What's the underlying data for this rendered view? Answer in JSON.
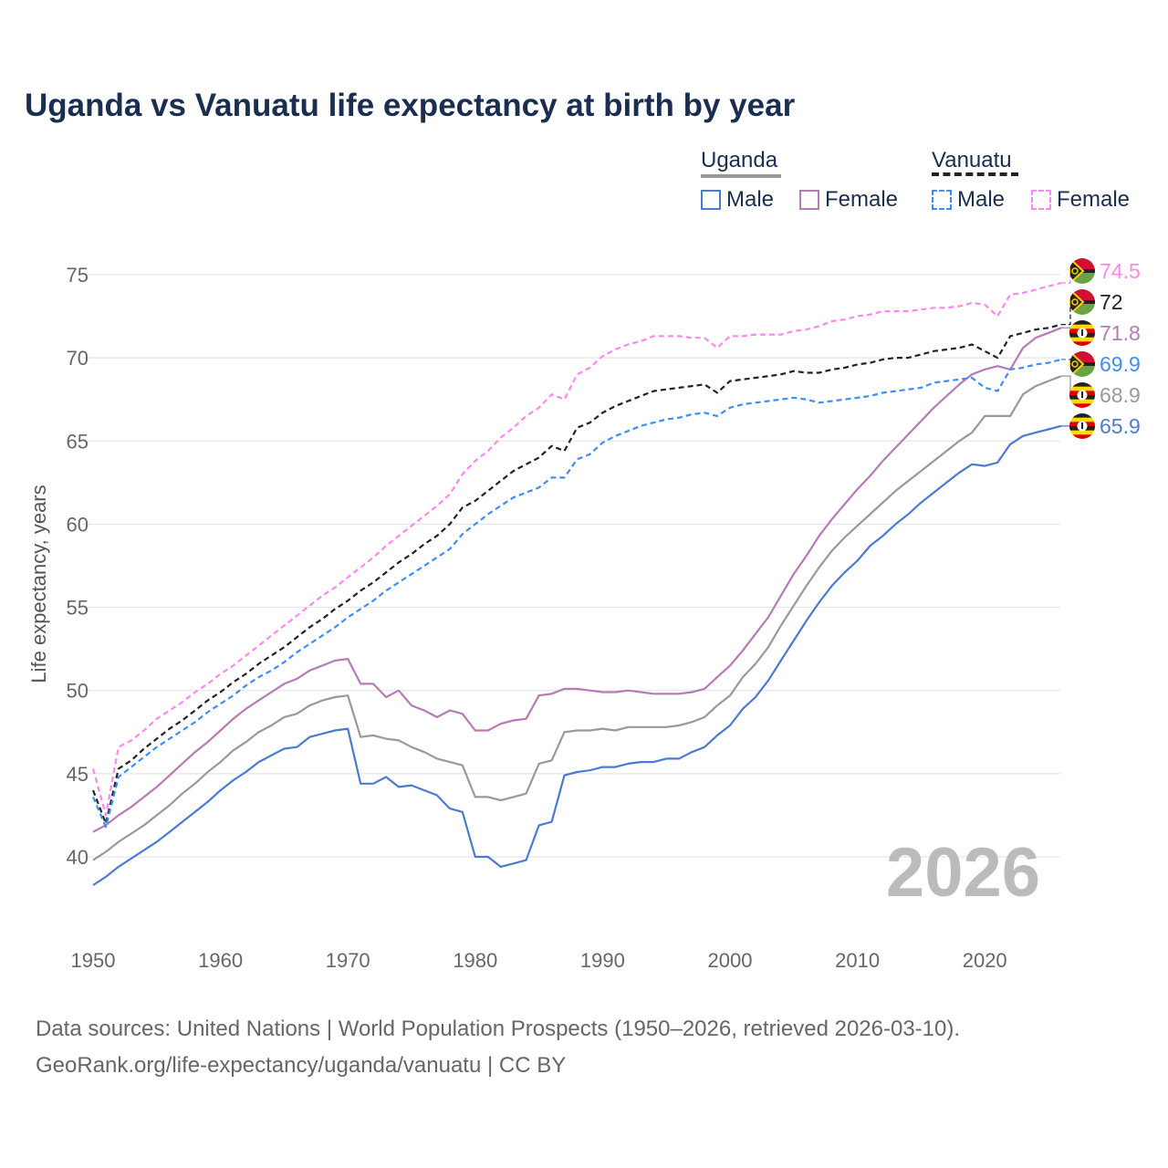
{
  "title": "Uganda vs Vanuatu life expectancy at birth by year",
  "legend": {
    "groups": [
      {
        "label": "Uganda"
      },
      {
        "label": "Vanuatu"
      }
    ],
    "items": [
      {
        "label": "Male"
      },
      {
        "label": "Female"
      },
      {
        "label": "Male"
      },
      {
        "label": "Female"
      }
    ]
  },
  "year_watermark": "2026",
  "source_line1": "Data sources: United Nations | World Population Prospects (1950–2026, retrieved 2026-03-10).",
  "source_line2": "GeoRank.org/life-expectancy/uganda/vanuatu | CC BY",
  "colors": {
    "uganda_male": "#4a7bd0",
    "uganda_female": "#b57bb5",
    "uganda_both": "#999999",
    "vanuatu_male": "#3d8ef5",
    "vanuatu_female": "#ff88f0",
    "vanuatu_both": "#222222"
  },
  "chart_data": {
    "type": "line",
    "title": "Uganda vs Vanuatu life expectancy at birth by year",
    "xlabel": "",
    "ylabel": "Life expectancy, years",
    "xlim": [
      1950,
      2026
    ],
    "ylim": [
      37,
      77
    ],
    "xticks": [
      1950,
      1960,
      1970,
      1980,
      1990,
      2000,
      2010,
      2020
    ],
    "yticks": [
      40,
      45,
      50,
      55,
      60,
      65,
      70,
      75
    ],
    "x_start": 1950,
    "grid": "horizontal",
    "series": [
      {
        "name": "Vanuatu Female",
        "key": "vanuatu_female",
        "flag": "vanuatu",
        "dash": true,
        "end_label": "74.5",
        "values": [
          45.3,
          42.5,
          46.6,
          47.0,
          47.6,
          48.3,
          48.8,
          49.3,
          49.9,
          50.4,
          51.0,
          51.5,
          52.1,
          52.7,
          53.3,
          53.9,
          54.5,
          55.1,
          55.7,
          56.2,
          56.8,
          57.4,
          58.0,
          58.7,
          59.3,
          59.9,
          60.5,
          61.1,
          61.8,
          63.0,
          63.8,
          64.4,
          65.2,
          65.8,
          66.5,
          67.0,
          67.8,
          67.5,
          69.0,
          69.4,
          70.1,
          70.5,
          70.8,
          71.0,
          71.3,
          71.3,
          71.3,
          71.2,
          71.2,
          70.6,
          71.3,
          71.3,
          71.4,
          71.4,
          71.4,
          71.6,
          71.7,
          71.9,
          72.2,
          72.3,
          72.5,
          72.6,
          72.8,
          72.8,
          72.8,
          72.9,
          73.0,
          73.0,
          73.1,
          73.3,
          73.2,
          72.5,
          73.8,
          73.9,
          74.1,
          74.3,
          74.5
        ]
      },
      {
        "name": "Vanuatu",
        "key": "vanuatu_both",
        "flag": "vanuatu",
        "dash": true,
        "end_label": "72",
        "values": [
          44.0,
          42.0,
          45.3,
          45.8,
          46.5,
          47.1,
          47.7,
          48.2,
          48.8,
          49.4,
          49.9,
          50.5,
          51.0,
          51.6,
          52.1,
          52.6,
          53.2,
          53.8,
          54.3,
          54.9,
          55.4,
          56.0,
          56.5,
          57.1,
          57.7,
          58.2,
          58.8,
          59.3,
          60.0,
          61.0,
          61.4,
          62.0,
          62.6,
          63.2,
          63.6,
          64.0,
          64.7,
          64.4,
          65.8,
          66.1,
          66.7,
          67.1,
          67.4,
          67.7,
          68.0,
          68.1,
          68.2,
          68.3,
          68.4,
          67.9,
          68.6,
          68.7,
          68.8,
          68.9,
          69.0,
          69.2,
          69.1,
          69.1,
          69.3,
          69.4,
          69.6,
          69.7,
          69.9,
          70.0,
          70.0,
          70.2,
          70.4,
          70.5,
          70.6,
          70.8,
          70.4,
          70.0,
          71.3,
          71.5,
          71.7,
          71.8,
          72.0
        ]
      },
      {
        "name": "Uganda Female",
        "key": "uganda_female",
        "flag": "uganda",
        "dash": false,
        "end_label": "71.8",
        "values": [
          41.5,
          41.9,
          42.5,
          43.0,
          43.6,
          44.2,
          44.9,
          45.6,
          46.3,
          46.9,
          47.6,
          48.3,
          48.9,
          49.4,
          49.9,
          50.4,
          50.7,
          51.2,
          51.5,
          51.8,
          51.9,
          50.4,
          50.4,
          49.6,
          50.0,
          49.1,
          48.8,
          48.4,
          48.8,
          48.6,
          47.6,
          47.6,
          48.0,
          48.2,
          48.3,
          49.7,
          49.8,
          50.1,
          50.1,
          50.0,
          49.9,
          49.9,
          50.0,
          49.9,
          49.8,
          49.8,
          49.8,
          49.9,
          50.1,
          50.8,
          51.5,
          52.4,
          53.4,
          54.4,
          55.7,
          57.0,
          58.1,
          59.3,
          60.3,
          61.2,
          62.1,
          62.9,
          63.8,
          64.6,
          65.4,
          66.2,
          67.0,
          67.7,
          68.4,
          69.0,
          69.3,
          69.5,
          69.3,
          70.6,
          71.2,
          71.5,
          71.8
        ]
      },
      {
        "name": "Vanuatu Male",
        "key": "vanuatu_male",
        "flag": "vanuatu",
        "dash": true,
        "end_label": "69.9",
        "values": [
          43.6,
          41.8,
          44.8,
          45.4,
          46.0,
          46.6,
          47.1,
          47.6,
          48.1,
          48.7,
          49.2,
          49.7,
          50.3,
          50.8,
          51.2,
          51.7,
          52.3,
          52.8,
          53.3,
          53.8,
          54.4,
          54.9,
          55.4,
          56.0,
          56.5,
          57.0,
          57.5,
          58.0,
          58.5,
          59.4,
          60.0,
          60.6,
          61.1,
          61.6,
          61.9,
          62.2,
          62.8,
          62.8,
          63.9,
          64.2,
          64.9,
          65.3,
          65.6,
          65.9,
          66.1,
          66.3,
          66.4,
          66.6,
          66.7,
          66.5,
          67.0,
          67.2,
          67.3,
          67.4,
          67.5,
          67.6,
          67.5,
          67.3,
          67.4,
          67.5,
          67.6,
          67.7,
          67.9,
          68.0,
          68.1,
          68.2,
          68.5,
          68.6,
          68.7,
          68.8,
          68.2,
          68.0,
          69.3,
          69.4,
          69.6,
          69.7,
          69.9
        ]
      },
      {
        "name": "Uganda",
        "key": "uganda_both",
        "flag": "uganda",
        "dash": false,
        "end_label": "68.9",
        "values": [
          39.8,
          40.3,
          40.9,
          41.4,
          41.9,
          42.5,
          43.1,
          43.8,
          44.4,
          45.1,
          45.7,
          46.4,
          46.9,
          47.5,
          47.9,
          48.4,
          48.6,
          49.1,
          49.4,
          49.6,
          49.7,
          47.2,
          47.3,
          47.1,
          47.0,
          46.6,
          46.3,
          45.9,
          45.7,
          45.5,
          43.6,
          43.6,
          43.4,
          43.6,
          43.8,
          45.6,
          45.8,
          47.5,
          47.6,
          47.6,
          47.7,
          47.6,
          47.8,
          47.8,
          47.8,
          47.8,
          47.9,
          48.1,
          48.4,
          49.1,
          49.7,
          50.8,
          51.6,
          52.6,
          53.9,
          55.1,
          56.3,
          57.4,
          58.4,
          59.2,
          59.9,
          60.6,
          61.3,
          62.0,
          62.6,
          63.2,
          63.8,
          64.4,
          65.0,
          65.5,
          66.5,
          66.5,
          66.5,
          67.8,
          68.3,
          68.6,
          68.9
        ]
      },
      {
        "name": "Uganda Male",
        "key": "uganda_male",
        "flag": "uganda",
        "dash": false,
        "end_label": "65.9",
        "values": [
          38.3,
          38.8,
          39.4,
          39.9,
          40.4,
          40.9,
          41.5,
          42.1,
          42.7,
          43.3,
          44.0,
          44.6,
          45.1,
          45.7,
          46.1,
          46.5,
          46.6,
          47.2,
          47.4,
          47.6,
          47.7,
          44.4,
          44.4,
          44.8,
          44.2,
          44.3,
          44.0,
          43.7,
          42.9,
          42.7,
          40.0,
          40.0,
          39.4,
          39.6,
          39.8,
          41.9,
          42.1,
          44.9,
          45.1,
          45.2,
          45.4,
          45.4,
          45.6,
          45.7,
          45.7,
          45.9,
          45.9,
          46.3,
          46.6,
          47.3,
          47.9,
          48.9,
          49.6,
          50.6,
          51.8,
          53.0,
          54.2,
          55.3,
          56.3,
          57.1,
          57.8,
          58.7,
          59.3,
          60.0,
          60.6,
          61.3,
          61.9,
          62.5,
          63.1,
          63.6,
          63.5,
          63.7,
          64.8,
          65.3,
          65.5,
          65.7,
          65.9
        ]
      }
    ]
  }
}
